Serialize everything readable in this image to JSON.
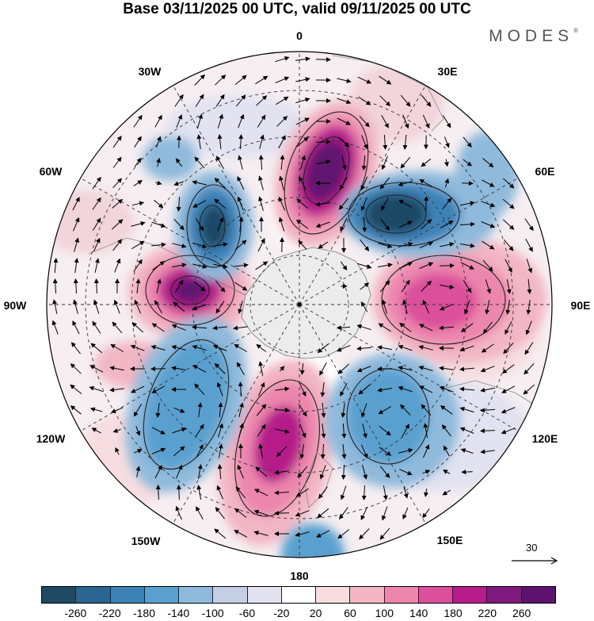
{
  "header": {
    "title": "Base 03/11/2025 00 UTC, valid 09/11/2025 00 UTC",
    "brand": "MODES",
    "brand_mark": "®"
  },
  "map": {
    "projection": "south-polar-stereographic",
    "longitude_labels": {
      "top": "0",
      "top_right": "30E",
      "right_upper": "60E",
      "right": "90E",
      "right_lower": "120E",
      "bottom_right": "150E",
      "bottom": "180",
      "bottom_left": "150W",
      "left_lower": "120W",
      "left": "90W",
      "left_upper": "60W",
      "top_left": "30W"
    },
    "reference_vector": {
      "label": "30"
    }
  },
  "legend": {
    "ticks": [
      "-260",
      "-220",
      "-180",
      "-140",
      "-100",
      "-60",
      "-20",
      "20",
      "60",
      "100",
      "140",
      "180",
      "220",
      "260"
    ],
    "colors": [
      "#1e4a66",
      "#2b6592",
      "#3d82b7",
      "#5aa0cf",
      "#8fbadb",
      "#c2cfe4",
      "#e2e2f0",
      "#ffffff",
      "#f7dde0",
      "#f2b6c4",
      "#ec86ad",
      "#dc4f9b",
      "#b51d8a",
      "#811a7e",
      "#5e1270"
    ]
  },
  "colors": {
    "land": "#ececec",
    "contour": "#222222",
    "grid": "#333333",
    "text": "#000000"
  }
}
